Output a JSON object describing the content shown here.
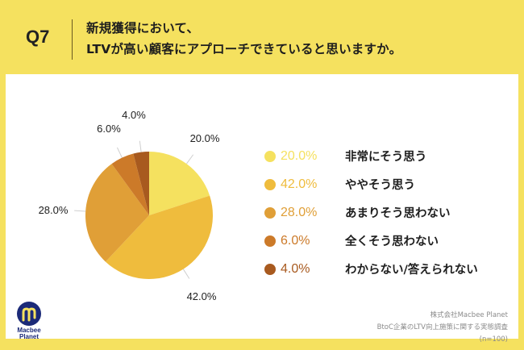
{
  "header": {
    "question_number": "Q7",
    "title_line1": "新規獲得において、",
    "title_line2": "LTVが高い顧客にアプローチできていると思いますか。"
  },
  "chart_data": {
    "type": "pie",
    "title": "新規獲得において、LTVが高い顧客にアプローチできていると思いますか。",
    "start_angle": "12 o'clock, clockwise",
    "slices": [
      {
        "label": "非常にそう思う",
        "value": 20.0,
        "display": "20.0%",
        "color": "#f5e15f"
      },
      {
        "label": "ややそう思う",
        "value": 42.0,
        "display": "42.0%",
        "color": "#efbc3d"
      },
      {
        "label": "あまりそう思わない",
        "value": 28.0,
        "display": "28.0%",
        "color": "#e09f37"
      },
      {
        "label": "全くそう思わない",
        "value": 6.0,
        "display": "6.0%",
        "color": "#cc7a29"
      },
      {
        "label": "わからない/答えられない",
        "value": 4.0,
        "display": "4.0%",
        "color": "#a85a1f"
      }
    ],
    "legend_placement": "right"
  },
  "footer": {
    "logo_line1": "Macbee",
    "logo_line2": "Planet",
    "source_line1": "株式会社Macbee Planet",
    "source_line2": "BtoC企業のLTV向上施策に関する実態調査",
    "source_line3": "(n=100)",
    "brand_color": "#1b2a78"
  }
}
